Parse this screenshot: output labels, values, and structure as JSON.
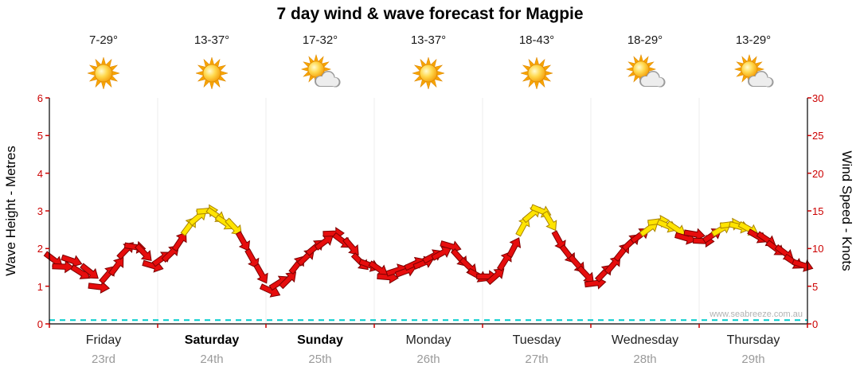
{
  "title": "7 day wind & wave forecast for Magpie",
  "watermark": "www.seabreeze.com.au",
  "axes": {
    "left_label": "Wave Height - Metres",
    "right_label": "Wind Speed - Knots",
    "left_ticks": [
      "0",
      "1",
      "2",
      "3",
      "4",
      "5",
      "6"
    ],
    "right_ticks": [
      "0",
      "5",
      "10",
      "15",
      "20",
      "25",
      "30"
    ]
  },
  "days": [
    {
      "name": "Friday",
      "date": "23rd",
      "temp": "7-29°",
      "icon": "sunny",
      "weekend": false
    },
    {
      "name": "Saturday",
      "date": "24th",
      "temp": "13-37°",
      "icon": "sunny",
      "weekend": true
    },
    {
      "name": "Sunday",
      "date": "25th",
      "temp": "17-32°",
      "icon": "partly-cloudy",
      "weekend": true
    },
    {
      "name": "Monday",
      "date": "26th",
      "temp": "13-37°",
      "icon": "sunny",
      "weekend": false
    },
    {
      "name": "Tuesday",
      "date": "27th",
      "temp": "18-43°",
      "icon": "sunny",
      "weekend": false
    },
    {
      "name": "Wednesday",
      "date": "28th",
      "temp": "18-29°",
      "icon": "partly-cloudy",
      "weekend": false
    },
    {
      "name": "Thursday",
      "date": "29th",
      "temp": "13-29°",
      "icon": "partly-cloudy",
      "weekend": false
    }
  ],
  "chart_data": {
    "type": "line",
    "title": "7 day wind & wave forecast for Magpie",
    "categories": [
      "Friday 23rd",
      "Saturday 24th",
      "Sunday 25th",
      "Monday 26th",
      "Tuesday 27th",
      "Wednesday 28th",
      "Thursday 29th"
    ],
    "samples_per_day": 12,
    "series": [
      {
        "name": "Wind Speed (knots), direction arrows coloured by strength",
        "axis": "right",
        "values": [
          8.5,
          7.6,
          8.4,
          6.8,
          6.9,
          4.9,
          6.6,
          7.7,
          9.8,
          10.2,
          9.4,
          7.7,
          8.7,
          9.4,
          11.0,
          13.0,
          14.2,
          15.0,
          14.4,
          13.4,
          12.8,
          10.9,
          8.6,
          6.6,
          4.4,
          5.5,
          5.9,
          7.9,
          8.9,
          10.2,
          10.9,
          12.0,
          11.0,
          10.2,
          8.2,
          7.8,
          7.3,
          6.2,
          7.1,
          7.0,
          8.0,
          8.1,
          9.0,
          9.4,
          10.3,
          8.7,
          7.6,
          6.4,
          6.3,
          6.4,
          8.4,
          10.2,
          13.0,
          14.6,
          15.0,
          13.6,
          11.0,
          9.2,
          7.9,
          6.5,
          5.4,
          6.8,
          7.9,
          9.6,
          10.9,
          11.8,
          12.7,
          13.6,
          13.0,
          12.6,
          11.4,
          11.9,
          11.0,
          11.8,
          12.6,
          13.2,
          12.9,
          12.6,
          11.6,
          11.2,
          10.0,
          9.4,
          8.2,
          7.8
        ]
      },
      {
        "name": "Wave Height (metres)",
        "axis": "left",
        "constant_value": 0.1
      }
    ],
    "left_axis": {
      "label": "Wave Height - Metres",
      "min": 0,
      "max": 6
    },
    "right_axis": {
      "label": "Wind Speed - Knots",
      "min": 0,
      "max": 30
    },
    "legend": "none",
    "grid": "faint vertical lines at day boundaries",
    "wind_arrow_yellow_threshold_knots": 12.5,
    "colors": {
      "wind_arrow_low": "#e60d0d",
      "wind_arrow_high": "#ffe400",
      "wave_line": "#00cccc",
      "axis_tick_text": "#cc0000",
      "axis_line": "#000000"
    }
  }
}
